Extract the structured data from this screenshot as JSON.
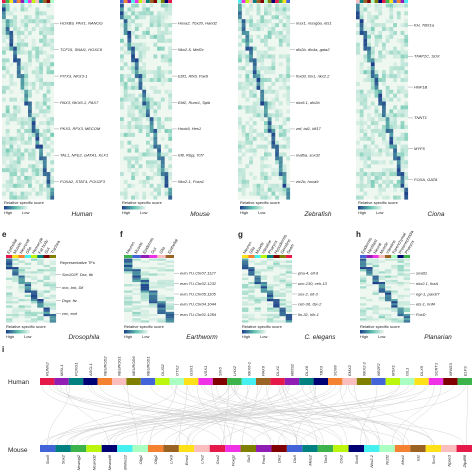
{
  "top_panels": [
    {
      "species": "Human",
      "tf_labels": [
        "HOXB9, PAX1, NANOG",
        "TCF15, SNAI1, HOXC6",
        "PITX3, NKX3-1",
        "PAX3, NKX6-1, PAX7",
        "PKX3, RFX3, MECOM",
        "TAL1, NFE2, GATA1, KLF1",
        "FOXA2, STAT4, POU2F3"
      ]
    },
    {
      "species": "Mouse",
      "tf_labels": [
        "Hoxa2, Tbx20, Hand2",
        "Nkx2-5, Mef2c",
        "Ebf1, Rfx6, Pax6",
        "Ebf2, Runx1, Spib",
        "Hoxb9, Hes1",
        "Irf8, Rbpj, Tcf7",
        "Nkx2-1, Foxa1"
      ]
    },
    {
      "species": "Zebrafish",
      "tf_labels": [
        "msx1, msxgba, ets1",
        "dlx2b, dlx4a, gata2",
        "foxd3, hlx1, nkx2.2",
        "nkx6.1, dlx2b",
        "znf, tal1, klf17",
        "mafba, sox32",
        "zic2b, hoxa9"
      ]
    },
    {
      "species": "Ciona",
      "tf_labels": [
        "KH, TBX1a",
        "TFAP2C, SOX",
        "HNF1B",
        "TNNT1",
        "MYF5",
        "FOXA, GATA"
      ]
    }
  ],
  "bottom_panels": [
    {
      "letter": "e",
      "species": "Drosophila",
      "columns": [
        "Epithelial",
        "Muscle",
        "Neuronal",
        "Glia",
        "Hemocyte",
        "Fat body",
        "Gut",
        "Trachea"
      ],
      "header": "Representative TFs",
      "tf_labels": [
        "Sox102F, Dsx, ttk",
        "ovo, brk, Dll",
        "Drgx, ftz",
        "cnc, exd"
      ]
    },
    {
      "letter": "f",
      "species": "Earthworm",
      "columns": [
        "Neuron",
        "Muscle",
        "Epidermis",
        "Gut",
        "Glia",
        "Epithelial"
      ],
      "tf_labels": [
        "evm.TU.Chr07.1127",
        "evm.TU.Chr02.1232",
        "evm.TU.Chr05.1105",
        "evm.TU.Chr04.1044",
        "evm.TU.Chr01.1284"
      ]
    },
    {
      "letter": "g",
      "species": "C. elegans",
      "columns": [
        "Neuron",
        "Glia",
        "Muscle",
        "Intestine",
        "Pharynx",
        "Hypodermis",
        "Germline",
        "Seam"
      ],
      "tf_labels": [
        "pha-4, elt-6",
        "unc-130, ceh-13",
        "sox-2, elt-3",
        "ceh-36, tbx-2",
        "lin-32, hlh-1"
      ]
    },
    {
      "letter": "h",
      "species": "Planarian",
      "columns": [
        "Epidermis",
        "Neoblast",
        "Neural",
        "Muscle",
        "Intestine",
        "Parenchymal",
        "Protonephridia",
        "Pharynx"
      ],
      "tf_labels": [
        "soxB1",
        "nkx2.1, foxA",
        "egr-1, pax3/7",
        "ets-1, hnf4",
        "FoxD"
      ]
    }
  ],
  "legend": {
    "title": "Relative specific score",
    "high": "High",
    "low": "Low"
  },
  "panel_i": {
    "letter": "i",
    "human": {
      "label": "Human",
      "genes": [
        {
          "name": "RUNX2",
          "color": "#333"
        },
        {
          "name": "MIXL1",
          "color": "#333"
        },
        {
          "name": "FOXG1",
          "color": "#333"
        },
        {
          "name": "ASCL1",
          "color": "#333"
        },
        {
          "name": "NEUROD2",
          "color": "#d6336c"
        },
        {
          "name": "NEUROG1",
          "color": "#d6336c"
        },
        {
          "name": "NEUROD6",
          "color": "#d6336c"
        },
        {
          "name": "NEUROD1",
          "color": "#d6336c"
        },
        {
          "name": "OLIG2",
          "color": "#333"
        },
        {
          "name": "OTX2",
          "color": "#333"
        },
        {
          "name": "GSX1",
          "color": "#333"
        },
        {
          "name": "VSX1",
          "color": "#333"
        },
        {
          "name": "SIX6",
          "color": "#333"
        },
        {
          "name": "LHX2",
          "color": "#333"
        },
        {
          "name": "NKX6-1",
          "color": "#333"
        },
        {
          "name": "PAX6",
          "color": "#333"
        },
        {
          "name": "DLX1",
          "color": "#333"
        },
        {
          "name": "MEIS2",
          "color": "#333"
        },
        {
          "name": "DLX6",
          "color": "#333"
        },
        {
          "name": "TBX3",
          "color": "#333"
        },
        {
          "name": "SOX8",
          "color": "#333"
        },
        {
          "name": "EMX2",
          "color": "#333"
        },
        {
          "name": "NKX2-2",
          "color": "#d6336c"
        },
        {
          "name": "NR2F2",
          "color": "#333"
        },
        {
          "name": "MSX1",
          "color": "#333"
        },
        {
          "name": "ISL1",
          "color": "#d6336c"
        },
        {
          "name": "DLX5",
          "color": "#333"
        },
        {
          "name": "SCRT1",
          "color": "#333"
        },
        {
          "name": "NPAS3",
          "color": "#333"
        },
        {
          "name": "ELF3",
          "color": "#333"
        }
      ]
    },
    "mouse": {
      "label": "Mouse",
      "genes": [
        {
          "name": "Sox5",
          "color": "#333"
        },
        {
          "name": "Sox2",
          "color": "#333"
        },
        {
          "name": "Neurog2",
          "color": "#d6336c"
        },
        {
          "name": "Neurod2",
          "color": "#d6336c"
        },
        {
          "name": "Neurod6",
          "color": "#d6336c"
        },
        {
          "name": "Bhlhe22",
          "color": "#d6336c"
        },
        {
          "name": "Olig1",
          "color": "#333"
        },
        {
          "name": "Olig2",
          "color": "#333"
        },
        {
          "name": "Lhx6",
          "color": "#333"
        },
        {
          "name": "Emx1",
          "color": "#333"
        },
        {
          "name": "Lhx2",
          "color": "#333"
        },
        {
          "name": "Gsx2",
          "color": "#333"
        },
        {
          "name": "Foxg1",
          "color": "#333"
        },
        {
          "name": "Six3",
          "color": "#333"
        },
        {
          "name": "Pax6",
          "color": "#333"
        },
        {
          "name": "Dlx1",
          "color": "#333"
        },
        {
          "name": "Dlx5",
          "color": "#333"
        },
        {
          "name": "Meis2",
          "color": "#333"
        },
        {
          "name": "Tbx3",
          "color": "#333"
        },
        {
          "name": "Otx2",
          "color": "#333"
        },
        {
          "name": "Sox8",
          "color": "#333"
        },
        {
          "name": "Nkx2-2",
          "color": "#d6336c"
        },
        {
          "name": "Nr2f2",
          "color": "#333"
        },
        {
          "name": "Msx1",
          "color": "#333"
        },
        {
          "name": "Isl1",
          "color": "#d6336c"
        },
        {
          "name": "Scrt1",
          "color": "#d6336c"
        },
        {
          "name": "Npas3",
          "color": "#333"
        },
        {
          "name": "Zfp488",
          "color": "#333"
        }
      ]
    }
  }
}
